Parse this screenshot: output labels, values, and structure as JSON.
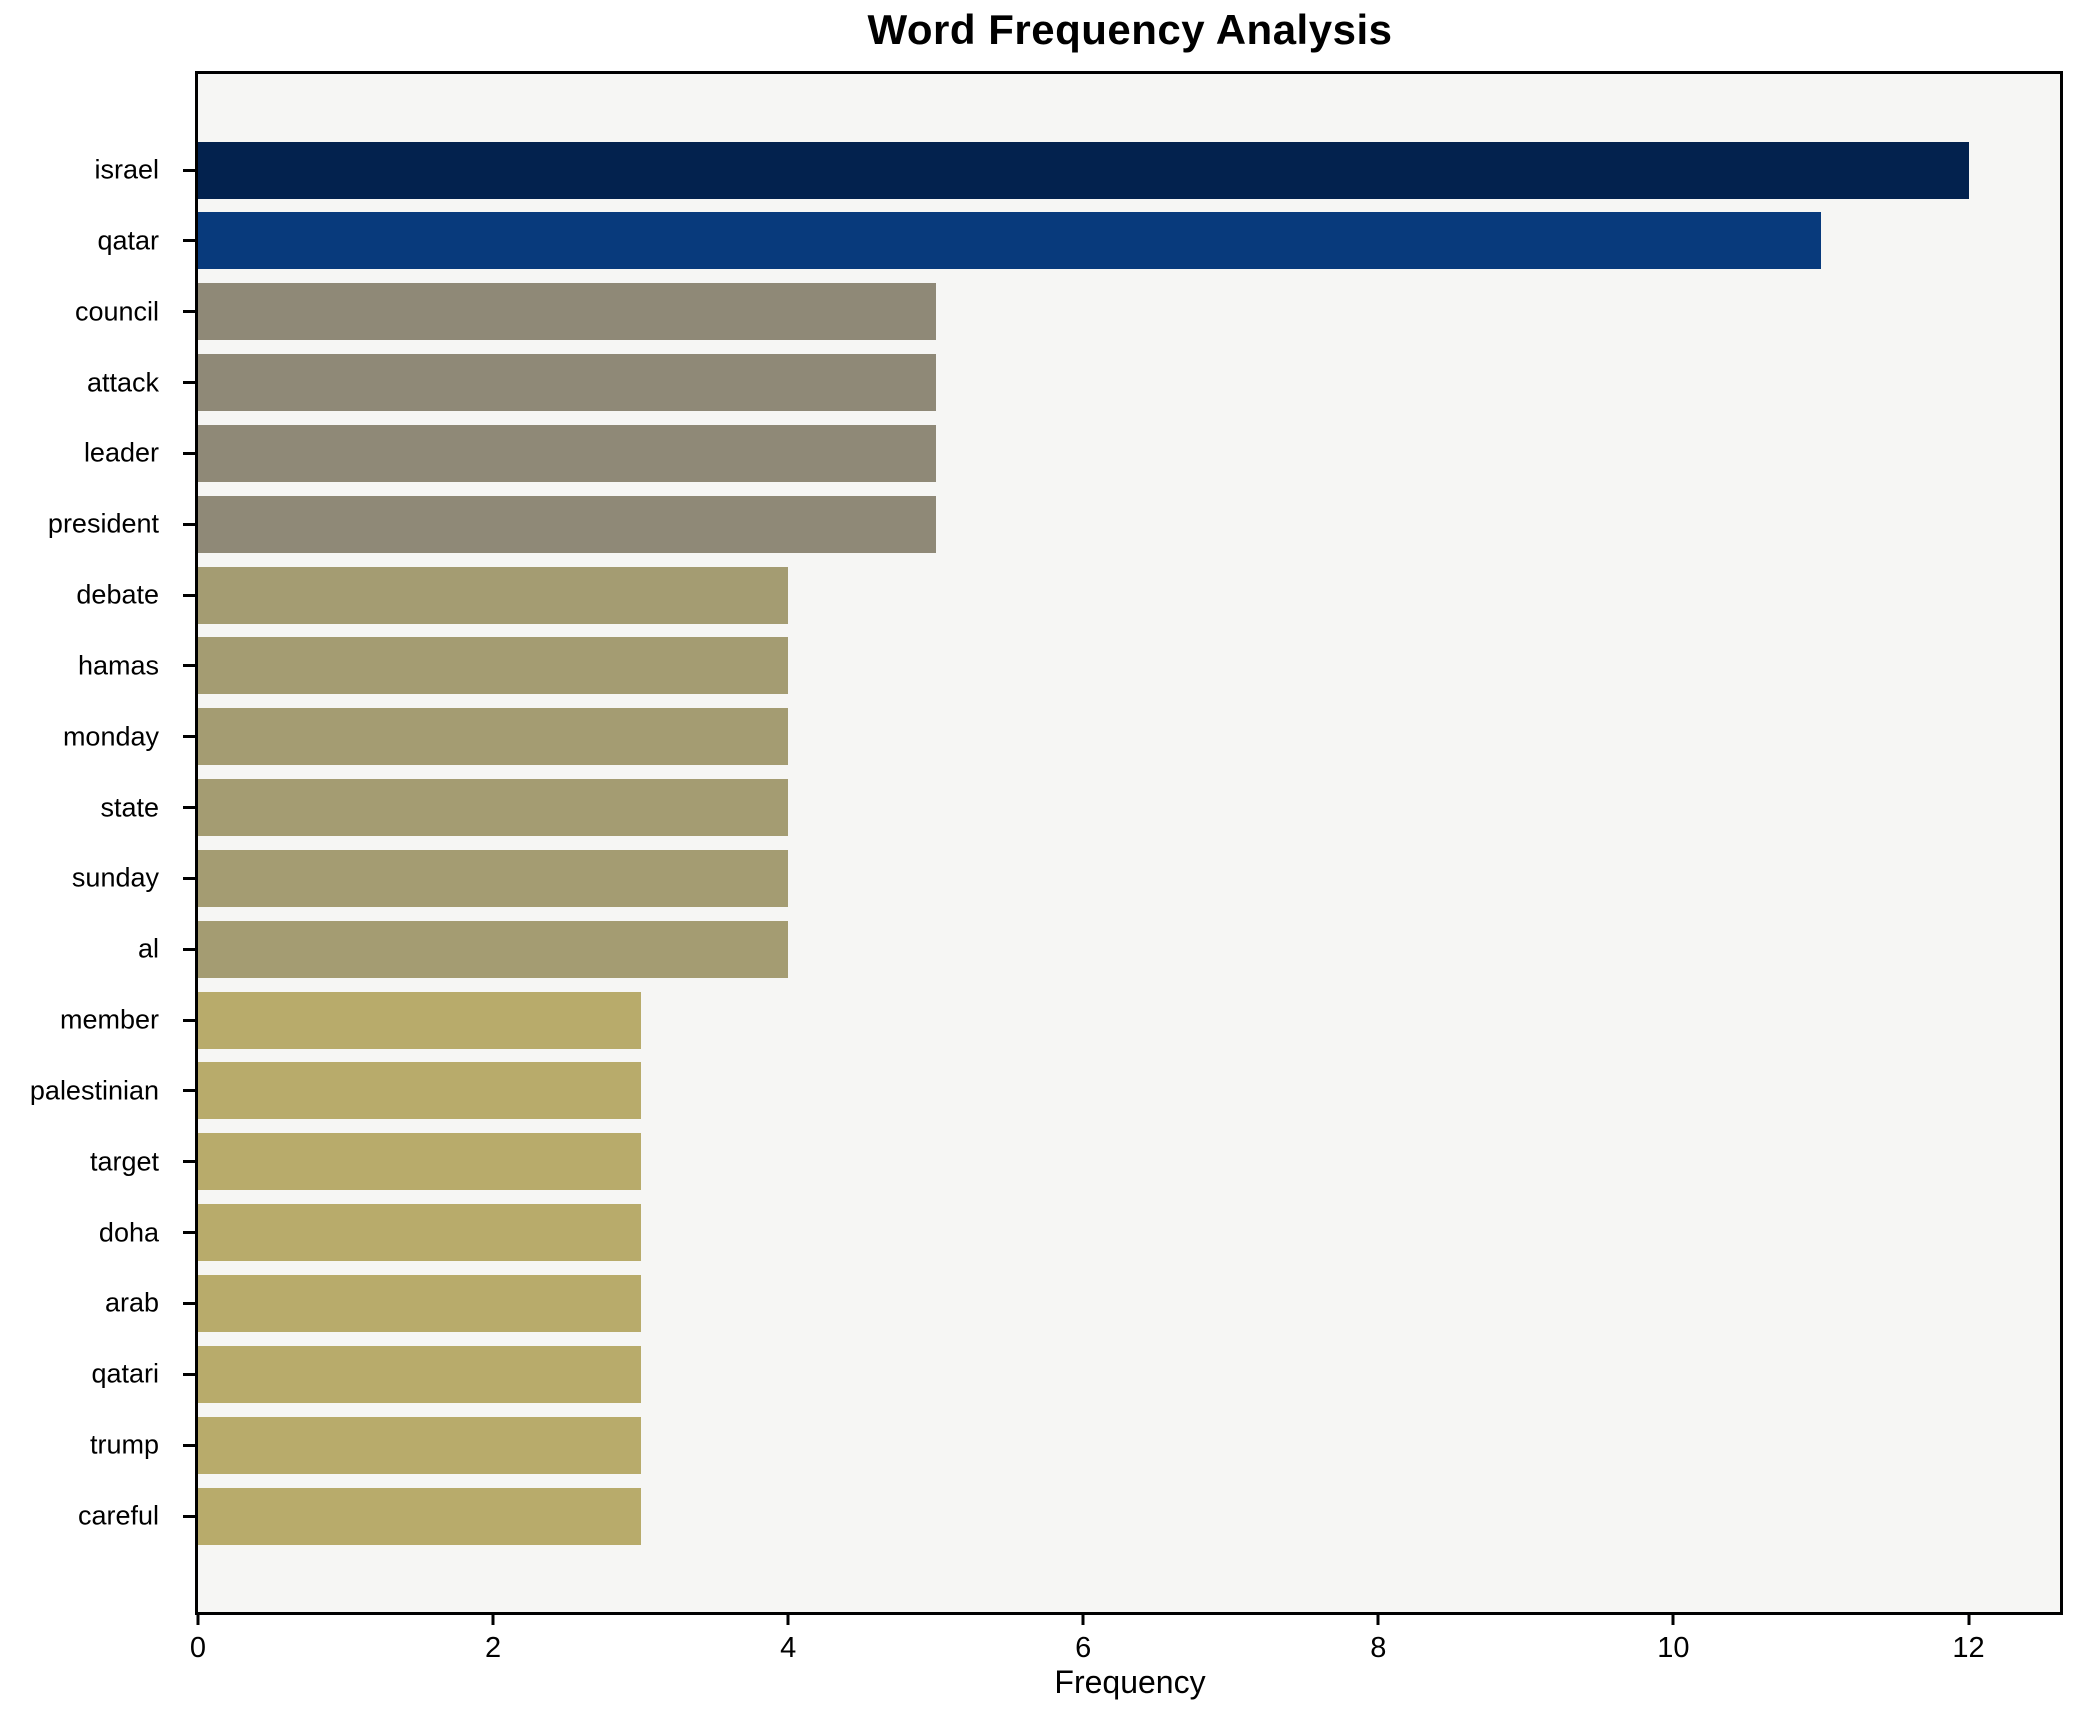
{
  "figure": {
    "background": "#ffffff",
    "plot_background": "#f6f6f4",
    "spine_color": "#000000",
    "text_color": "#000000"
  },
  "chart_data": {
    "type": "bar",
    "orientation": "horizontal",
    "title": "Word Frequency Analysis",
    "xlabel": "Frequency",
    "ylabel": "",
    "xlim": [
      0,
      12.62
    ],
    "xticks": [
      0,
      2,
      4,
      6,
      8,
      10,
      12
    ],
    "grid": false,
    "legend": false,
    "bar_height_fraction": 0.8,
    "categories": [
      "israel",
      "qatar",
      "council",
      "attack",
      "leader",
      "president",
      "debate",
      "hamas",
      "monday",
      "state",
      "sunday",
      "al",
      "member",
      "palestinian",
      "target",
      "doha",
      "arab",
      "qatari",
      "trump",
      "careful"
    ],
    "values": [
      12,
      11,
      5,
      5,
      5,
      5,
      4,
      4,
      4,
      4,
      4,
      4,
      3,
      3,
      3,
      3,
      3,
      3,
      3,
      3
    ],
    "bar_colors": [
      "#03224e",
      "#083a7c",
      "#8f8977",
      "#8f8977",
      "#8f8977",
      "#8f8977",
      "#a49c72",
      "#a49c72",
      "#a49c72",
      "#a49c72",
      "#a49c72",
      "#a49c72",
      "#b8ab6b",
      "#b8ab6b",
      "#b8ab6b",
      "#b8ab6b",
      "#b8ab6b",
      "#b8ab6b",
      "#b8ab6b",
      "#b8ab6b"
    ]
  }
}
